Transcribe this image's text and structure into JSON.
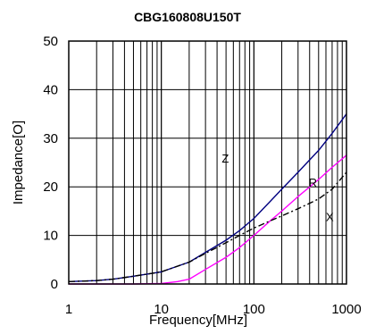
{
  "chart_data": {
    "type": "line",
    "title": "CBG160808U150T",
    "xlabel": "Frequency[MHz]",
    "ylabel": "Impedance[O]",
    "xscale": "log",
    "xlim": [
      1,
      1000
    ],
    "ylim": [
      0,
      50
    ],
    "grid": true,
    "x_ticks": [
      {
        "value": 1,
        "label": "1"
      },
      {
        "value": 10,
        "label": "10"
      },
      {
        "value": 100,
        "label": "100"
      },
      {
        "value": 1000,
        "label": "1000"
      }
    ],
    "y_ticks": [
      {
        "value": 0,
        "label": "0"
      },
      {
        "value": 10,
        "label": "10"
      },
      {
        "value": 20,
        "label": "20"
      },
      {
        "value": 30,
        "label": "30"
      },
      {
        "value": 40,
        "label": "40"
      },
      {
        "value": 50,
        "label": "50"
      }
    ],
    "series": [
      {
        "name": "Z",
        "color": "#000080",
        "dash": "solid",
        "x": [
          1,
          2,
          3,
          5,
          10,
          20,
          30,
          50,
          70,
          100,
          150,
          200,
          300,
          500,
          700,
          1000
        ],
        "y": [
          0.5,
          0.7,
          1.0,
          1.6,
          2.5,
          4.5,
          6.5,
          9.0,
          11.0,
          13.5,
          17.0,
          19.5,
          23.0,
          27.5,
          31.0,
          35.0
        ],
        "label_at": [
          45,
          25
        ]
      },
      {
        "name": "R",
        "color": "#ff00ff",
        "dash": "solid",
        "x": [
          1,
          5,
          10,
          15,
          20,
          30,
          50,
          70,
          100,
          150,
          200,
          300,
          500,
          700,
          1000
        ],
        "y": [
          0.0,
          0.0,
          0.1,
          0.5,
          1.0,
          3.0,
          5.5,
          7.5,
          10.0,
          13.0,
          15.0,
          18.0,
          21.5,
          24.0,
          26.5
        ],
        "label_at": [
          390,
          20
        ]
      },
      {
        "name": "X",
        "color": "#000000",
        "dash": "dashdot",
        "x": [
          1,
          2,
          3,
          5,
          10,
          20,
          30,
          50,
          70,
          100,
          150,
          200,
          300,
          500,
          700,
          1000
        ],
        "y": [
          0.5,
          0.7,
          1.0,
          1.6,
          2.5,
          4.5,
          6.3,
          8.5,
          10.0,
          11.5,
          13.0,
          14.0,
          15.5,
          17.5,
          19.5,
          23.0
        ],
        "label_at": [
          600,
          13
        ]
      }
    ]
  }
}
